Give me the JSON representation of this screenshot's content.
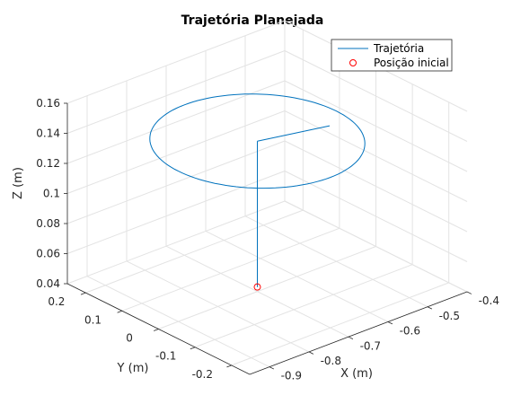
{
  "chart_data": {
    "type": "line",
    "projection": "3d",
    "title": "Trajetória Planejada",
    "xlabel": "X (m)",
    "ylabel": "Y (m)",
    "zlabel": "Z (m)",
    "xlim": [
      -0.95,
      -0.4
    ],
    "ylim": [
      -0.25,
      0.25
    ],
    "zlim": [
      0.04,
      0.16
    ],
    "x_ticks": [
      -0.9,
      -0.8,
      -0.7,
      -0.6,
      -0.5,
      -0.4
    ],
    "x_tick_labels": [
      "-0.9",
      "-0.8",
      "-0.7",
      "-0.6",
      "-0.5",
      "-0.4"
    ],
    "y_ticks": [
      -0.2,
      -0.1,
      0,
      0.1,
      0.2
    ],
    "y_tick_labels": [
      "-0.2",
      "-0.1",
      "0",
      "0.1",
      "0.2"
    ],
    "z_ticks": [
      0.04,
      0.06,
      0.08,
      0.1,
      0.12,
      0.14,
      0.16
    ],
    "z_tick_labels": [
      "0.04",
      "0.06",
      "0.08",
      "0.1",
      "0.12",
      "0.14",
      "0.16"
    ],
    "grid": true,
    "legend_location": "top-right",
    "series": [
      {
        "name": "Trajetória",
        "color": "#0072BD",
        "segments": [
          {
            "kind": "line",
            "x": [
              -0.7,
              -0.7
            ],
            "y": [
              0,
              0
            ],
            "z": [
              0.043,
              0.14
            ]
          },
          {
            "kind": "line",
            "x": [
              -0.7,
              -0.552
            ],
            "y": [
              0,
              -0.038
            ],
            "z": [
              0.14,
              0.14
            ]
          },
          {
            "kind": "circle",
            "center_x": -0.7,
            "center_y": 0,
            "z": 0.14,
            "radius": 0.2
          }
        ]
      },
      {
        "name": "Posição inicial",
        "color": "#FF0000",
        "marker": "circle",
        "x": [
          -0.7
        ],
        "y": [
          0
        ],
        "z": [
          0.043
        ]
      }
    ]
  }
}
